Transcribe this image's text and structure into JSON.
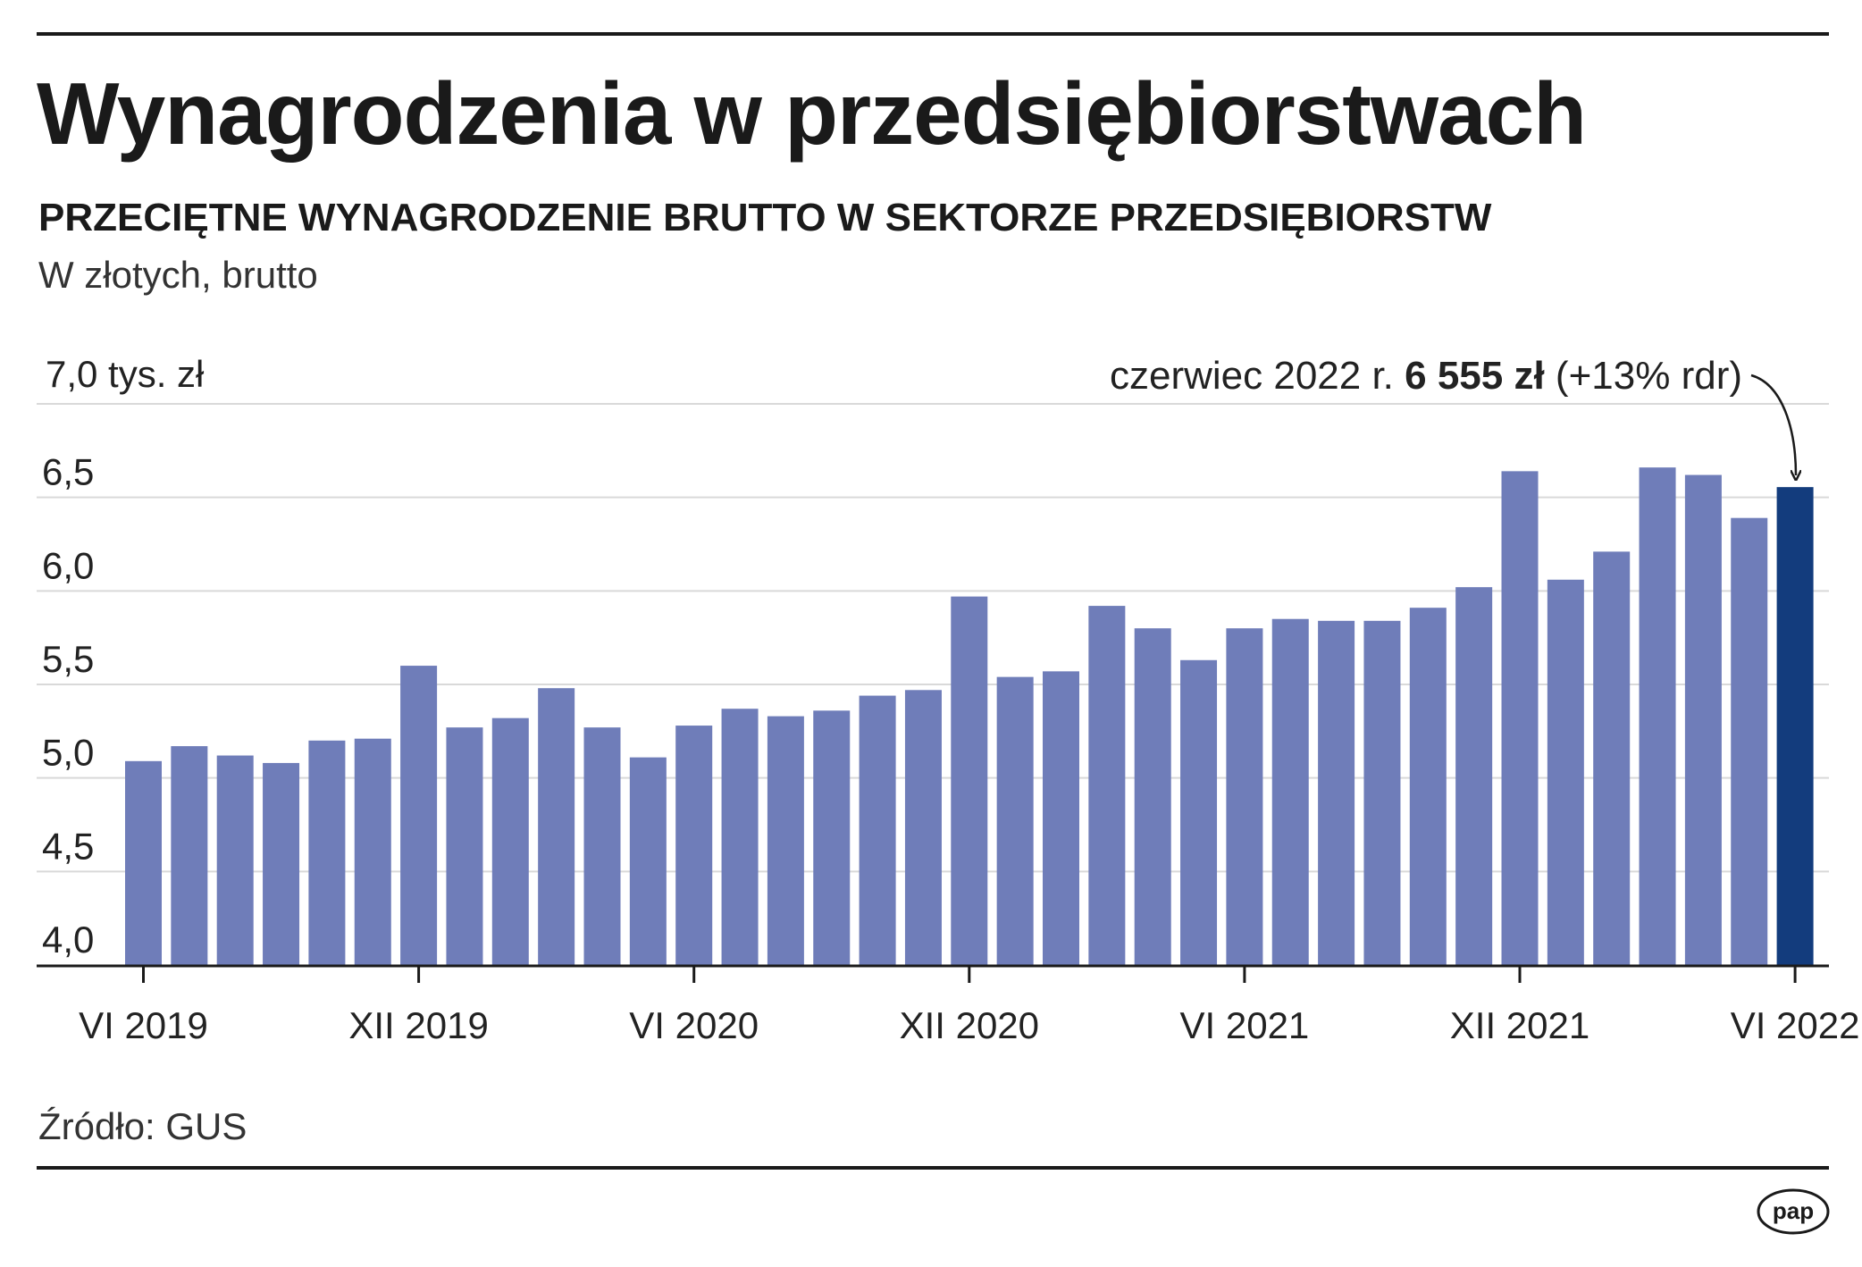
{
  "title": "Wynagrodzenia w przedsiębiorstwach",
  "subtitle": "PRZECIĘTNE WYNAGRODZENIE BRUTTO W SEKTORZE PRZEDSIĘBIORSTW",
  "unit_note": "W złotych, brutto",
  "source": "Źródło: GUS",
  "logo_text": "pap",
  "colors": {
    "bar": "#6f7db9",
    "highlight": "#133c7d",
    "grid": "#d9d9d9",
    "axis": "#1a1a1a"
  },
  "chart_data": {
    "type": "bar",
    "y_unit_label": "7,0 tys. zł",
    "ylim": [
      4.0,
      7.0
    ],
    "y_ticks": [
      {
        "value": 4.0,
        "label": "4,0"
      },
      {
        "value": 4.5,
        "label": "4,5"
      },
      {
        "value": 5.0,
        "label": "5,0"
      },
      {
        "value": 5.5,
        "label": "5,5"
      },
      {
        "value": 6.0,
        "label": "6,0"
      },
      {
        "value": 6.5,
        "label": "6,5"
      },
      {
        "value": 7.0,
        "label": ""
      }
    ],
    "grid": true,
    "x_ticks": [
      {
        "index": 0,
        "label": "VI 2019"
      },
      {
        "index": 6,
        "label": "XII 2019"
      },
      {
        "index": 12,
        "label": "VI 2020"
      },
      {
        "index": 18,
        "label": "XII 2020"
      },
      {
        "index": 24,
        "label": "VI 2021"
      },
      {
        "index": 30,
        "label": "XII 2021"
      },
      {
        "index": 36,
        "label": "VI 2022"
      }
    ],
    "values": [
      5.09,
      5.17,
      5.12,
      5.08,
      5.2,
      5.21,
      5.6,
      5.27,
      5.32,
      5.48,
      5.27,
      5.11,
      5.28,
      5.37,
      5.33,
      5.36,
      5.44,
      5.47,
      5.97,
      5.54,
      5.57,
      5.92,
      5.8,
      5.63,
      5.8,
      5.85,
      5.84,
      5.84,
      5.91,
      6.02,
      6.64,
      6.06,
      6.21,
      6.66,
      6.62,
      6.39,
      6.555
    ],
    "highlight_index": 36,
    "annotation": {
      "prefix": "czerwiec 2022 r. ",
      "value": "6 555 zł",
      "suffix": " (+13% rdr)"
    }
  }
}
